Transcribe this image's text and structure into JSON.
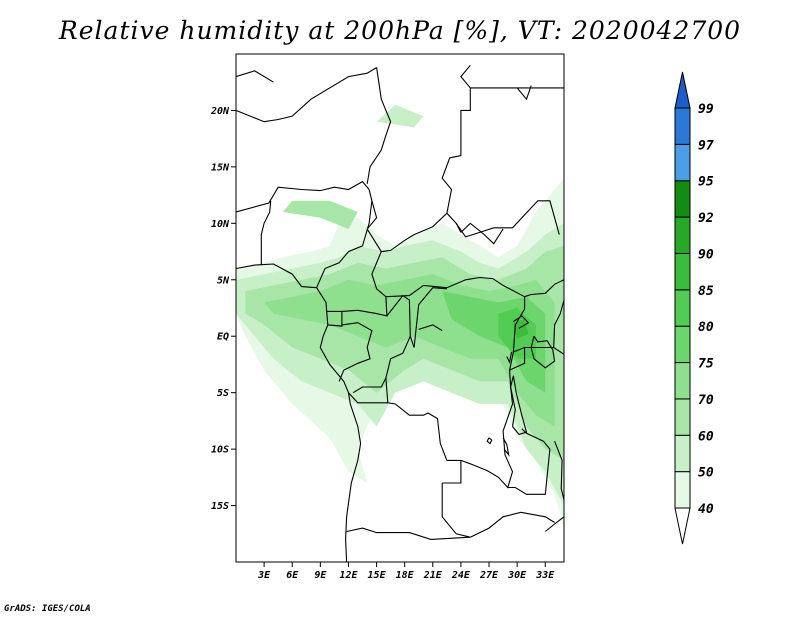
{
  "title": "Relative humidity at 200hPa [%], VT: 2020042700",
  "credit": "GrADS: IGES/COLA",
  "map": {
    "lon_range": [
      0,
      35
    ],
    "lat_range": [
      -20,
      25
    ],
    "lat_ticks": [
      {
        "value": 20,
        "label": "20N"
      },
      {
        "value": 15,
        "label": "15N"
      },
      {
        "value": 10,
        "label": "10N"
      },
      {
        "value": 5,
        "label": "5N"
      },
      {
        "value": 0,
        "label": "EQ"
      },
      {
        "value": -5,
        "label": "5S"
      },
      {
        "value": -10,
        "label": "10S"
      },
      {
        "value": -15,
        "label": "15S"
      }
    ],
    "lon_ticks": [
      {
        "value": 3,
        "label": "3E"
      },
      {
        "value": 6,
        "label": "6E"
      },
      {
        "value": 9,
        "label": "9E"
      },
      {
        "value": 12,
        "label": "12E"
      },
      {
        "value": 15,
        "label": "15E"
      },
      {
        "value": 18,
        "label": "18E"
      },
      {
        "value": 21,
        "label": "21E"
      },
      {
        "value": 24,
        "label": "24E"
      },
      {
        "value": 27,
        "label": "27E"
      },
      {
        "value": 30,
        "label": "30E"
      },
      {
        "value": 33,
        "label": "33E"
      }
    ]
  },
  "colorbar": {
    "levels": [
      {
        "label": "40",
        "color": "#e6f8e6"
      },
      {
        "label": "50",
        "color": "#c8f0c8"
      },
      {
        "label": "60",
        "color": "#a8e6a8"
      },
      {
        "label": "70",
        "color": "#8ee08e"
      },
      {
        "label": "75",
        "color": "#6cd66c"
      },
      {
        "label": "80",
        "color": "#52cc52"
      },
      {
        "label": "85",
        "color": "#3cbc3c"
      },
      {
        "label": "90",
        "color": "#28a828"
      },
      {
        "label": "92",
        "color": "#148c14"
      },
      {
        "label": "95",
        "color": "#4a9ee6"
      },
      {
        "label": "97",
        "color": "#2a78d8"
      },
      {
        "label": "99",
        "color": "#1e5cc8"
      }
    ]
  }
}
